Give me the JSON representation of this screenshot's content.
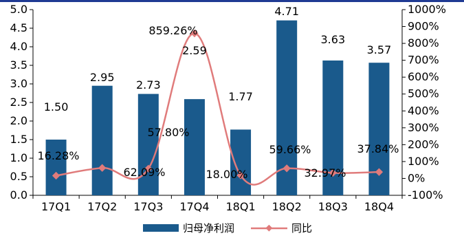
{
  "chart_data": {
    "type": "bar",
    "title": "",
    "xlabel": "",
    "ylabel": "",
    "categories": [
      "17Q1",
      "17Q2",
      "17Q3",
      "17Q4",
      "18Q1",
      "18Q2",
      "18Q3",
      "18Q4"
    ],
    "series": [
      {
        "name": "归母净利润",
        "type": "bar",
        "axis": "left",
        "color": "#1a5a8c",
        "values": [
          1.5,
          2.95,
          2.73,
          2.59,
          1.77,
          4.71,
          3.63,
          3.57
        ],
        "labels": [
          "1.50",
          "2.95",
          "2.73",
          "2.59",
          "1.77",
          "4.71",
          "3.63",
          "3.57"
        ]
      },
      {
        "name": "同比",
        "type": "line",
        "axis": "right",
        "color": "#e07b7b",
        "smooth": true,
        "values": [
          16.28,
          62.09,
          57.8,
          859.26,
          18.0,
          59.66,
          32.97,
          37.84
        ],
        "labels": [
          "16.28%",
          "62.09%",
          "57.80%",
          "859.26%",
          "18.00%",
          "59.66%",
          "32.97%",
          "37.84%"
        ]
      }
    ],
    "ylim": [
      0,
      5
    ],
    "y_ticks": [
      "0.0",
      "0.5",
      "1.0",
      "1.5",
      "2.0",
      "2.5",
      "3.0",
      "3.5",
      "4.0",
      "4.5",
      "5.0"
    ],
    "y2lim": [
      -100,
      1000
    ],
    "y2_ticks": [
      "-100%",
      "0%",
      "100%",
      "200%",
      "300%",
      "400%",
      "500%",
      "600%",
      "700%",
      "800%",
      "900%",
      "1000%"
    ],
    "grid": false,
    "legend_position": "bottom-center"
  }
}
